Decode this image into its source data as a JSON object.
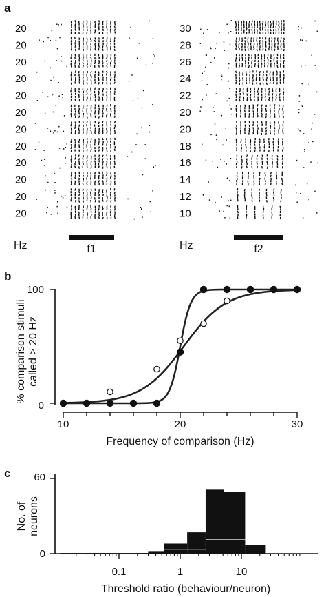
{
  "panel_a": {
    "label": "a",
    "left_rows": [
      "20",
      "20",
      "20",
      "20",
      "20",
      "20",
      "20",
      "20",
      "20",
      "20",
      "20",
      "20"
    ],
    "right_rows": [
      "30",
      "28",
      "26",
      "24",
      "22",
      "20",
      "20",
      "18",
      "16",
      "14",
      "12",
      "10"
    ],
    "left_unit": "Hz",
    "right_unit": "Hz",
    "left_bar_label": "f1",
    "right_bar_label": "f2"
  },
  "panel_b": {
    "label": "b",
    "ylabel_line1": "% comparison stimuli",
    "ylabel_line2": "called > 20 Hz",
    "xlabel": "Frequency of comparison (Hz)",
    "xticks": [
      "10",
      "20",
      "30"
    ],
    "yticks": [
      "0",
      "100"
    ]
  },
  "panel_c": {
    "label": "c",
    "ylabel_line1": "No. of",
    "ylabel_line2": "neurons",
    "xlabel": "Threshold ratio (behaviour/neuron)",
    "xticks": [
      "0.1",
      "1",
      "10"
    ],
    "yticks": [
      "0",
      "60"
    ]
  },
  "chart_data": [
    {
      "type": "scatter",
      "xlabel": "Frequency of comparison (Hz)",
      "ylabel": "% comparison stimuli called > 20 Hz",
      "xlim": [
        10,
        30
      ],
      "ylim": [
        0,
        100
      ],
      "series": [
        {
          "marker": "open-circle",
          "x": [
            10,
            12,
            14,
            18,
            20,
            22,
            24,
            28,
            30
          ],
          "y": [
            0,
            0,
            10,
            30,
            55,
            70,
            90,
            100,
            100
          ],
          "fit": "sigmoid",
          "x0": 20.3,
          "k": 0.55
        },
        {
          "marker": "filled-circle",
          "x": [
            10,
            12,
            14,
            16,
            18,
            20,
            22,
            24,
            26,
            28,
            30
          ],
          "y": [
            0,
            0,
            0,
            0,
            0,
            45,
            100,
            100,
            100,
            100,
            100
          ],
          "fit": "sigmoid",
          "x0": 20.0,
          "k": 2.2
        }
      ]
    },
    {
      "type": "bar",
      "xlabel": "Threshold ratio (behaviour/neuron)",
      "ylabel": "No. of neurons",
      "xscale": "log",
      "ylim": [
        0,
        60
      ],
      "bins": [
        {
          "from": 0.011,
          "to": 0.3,
          "count": 0.5
        },
        {
          "from": 0.3,
          "to": 0.55,
          "count": 2
        },
        {
          "from": 0.55,
          "to": 1.3,
          "count": 8
        },
        {
          "from": 1.3,
          "to": 2.6,
          "count": 17
        },
        {
          "from": 2.6,
          "to": 5.2,
          "count": 51
        },
        {
          "from": 5.2,
          "to": 11.5,
          "count": 49
        },
        {
          "from": 11.5,
          "to": 25,
          "count": 7
        }
      ]
    }
  ]
}
